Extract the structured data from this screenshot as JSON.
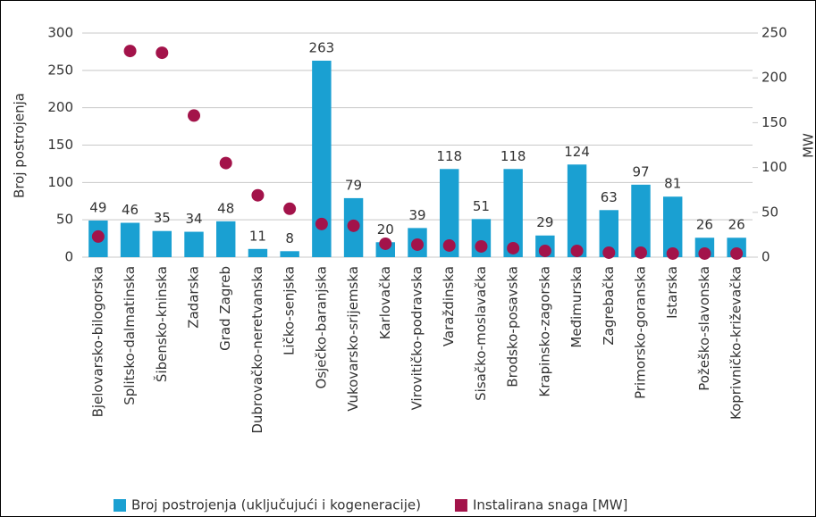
{
  "chart_data": {
    "type": "bar",
    "categories": [
      "Bjelovarsko-bilogorska",
      "Splitsko-dalmatinska",
      "Šibensko-kninska",
      "Zadarska",
      "Grad Zagreb",
      "Dubrovačko-neretvanska",
      "Ličko-senjska",
      "Osječko-baranjska",
      "Vukovarsko-srijemska",
      "Karlovačka",
      "Virovitičko-podravska",
      "Varaždinska",
      "Sisačko-moslavačka",
      "Brodsko-posavska",
      "Krapinsko-zagorska",
      "Međimurska",
      "Zagrebačka",
      "Primorsko-goranska",
      "Istarska",
      "Požeško-slavonska",
      "Koprivničko-križevačka"
    ],
    "series": [
      {
        "name": "Broj postrojenja (uključujući i kogeneracije)",
        "color": "#1aa0d2",
        "type": "bar",
        "values": [
          49,
          46,
          35,
          34,
          48,
          11,
          8,
          263,
          79,
          20,
          39,
          118,
          51,
          118,
          29,
          124,
          63,
          97,
          81,
          26,
          26
        ]
      },
      {
        "name": "Instalirana snaga [MW]",
        "color": "#a3134a",
        "type": "scatter",
        "axis": "y2",
        "values": [
          23,
          230,
          228,
          158,
          105,
          69,
          54,
          37,
          35,
          15,
          14,
          13,
          12,
          10,
          7,
          7,
          5,
          5,
          4,
          4,
          4
        ]
      }
    ],
    "ylabel": "Broj postrojenja",
    "y2label": "MW",
    "ylim": [
      0,
      300
    ],
    "yticks": [
      0,
      50,
      100,
      150,
      200,
      250,
      300
    ],
    "y2lim": [
      0,
      250
    ],
    "y2ticks": [
      0,
      50,
      100,
      150,
      200,
      250
    ],
    "grid": true,
    "legend": "bottom"
  }
}
